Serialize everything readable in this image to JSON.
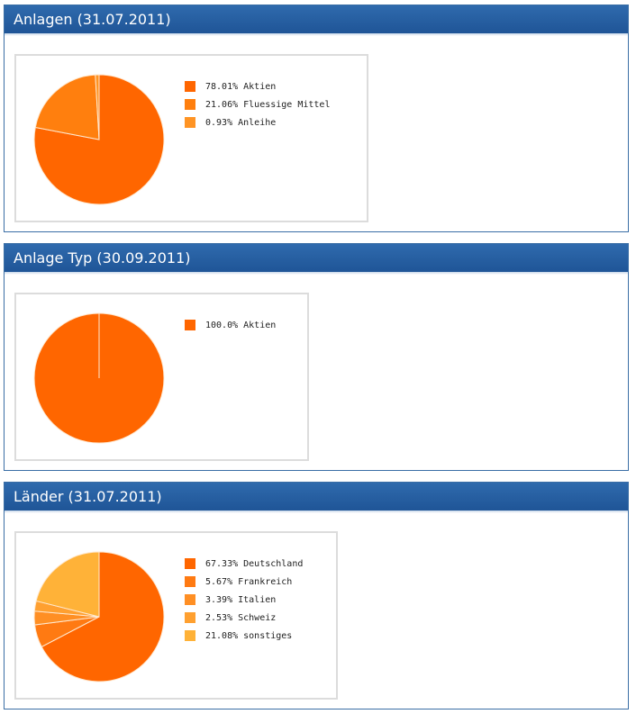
{
  "panels": [
    {
      "title": "Anlagen (31.07.2011)",
      "chart_data": {
        "type": "pie",
        "slices": [
          {
            "label": "78.01% Aktien",
            "value": 78.01,
            "color": "#ff6600"
          },
          {
            "label": "21.06% Fluessige Mittel",
            "value": 21.06,
            "color": "#ff7f0e"
          },
          {
            "label": "0.93% Anleihe",
            "value": 0.93,
            "color": "#ff9424"
          }
        ],
        "legend_position": "right"
      }
    },
    {
      "title": "Anlage Typ (30.09.2011)",
      "chart_data": {
        "type": "pie",
        "slices": [
          {
            "label": "100.0% Aktien",
            "value": 100.0,
            "color": "#ff6600"
          }
        ],
        "legend_position": "right"
      }
    },
    {
      "title": "Länder (31.07.2011)",
      "chart_data": {
        "type": "pie",
        "slices": [
          {
            "label": "67.33% Deutschland",
            "value": 67.33,
            "color": "#ff6600"
          },
          {
            "label": "5.67% Frankreich",
            "value": 5.67,
            "color": "#ff7a12"
          },
          {
            "label": "3.39% Italien",
            "value": 3.39,
            "color": "#ff8f24"
          },
          {
            "label": "2.53% Schweiz",
            "value": 2.53,
            "color": "#ffa030"
          },
          {
            "label": "21.08% sonstiges",
            "value": 21.08,
            "color": "#ffb238"
          }
        ],
        "legend_position": "right"
      }
    }
  ]
}
